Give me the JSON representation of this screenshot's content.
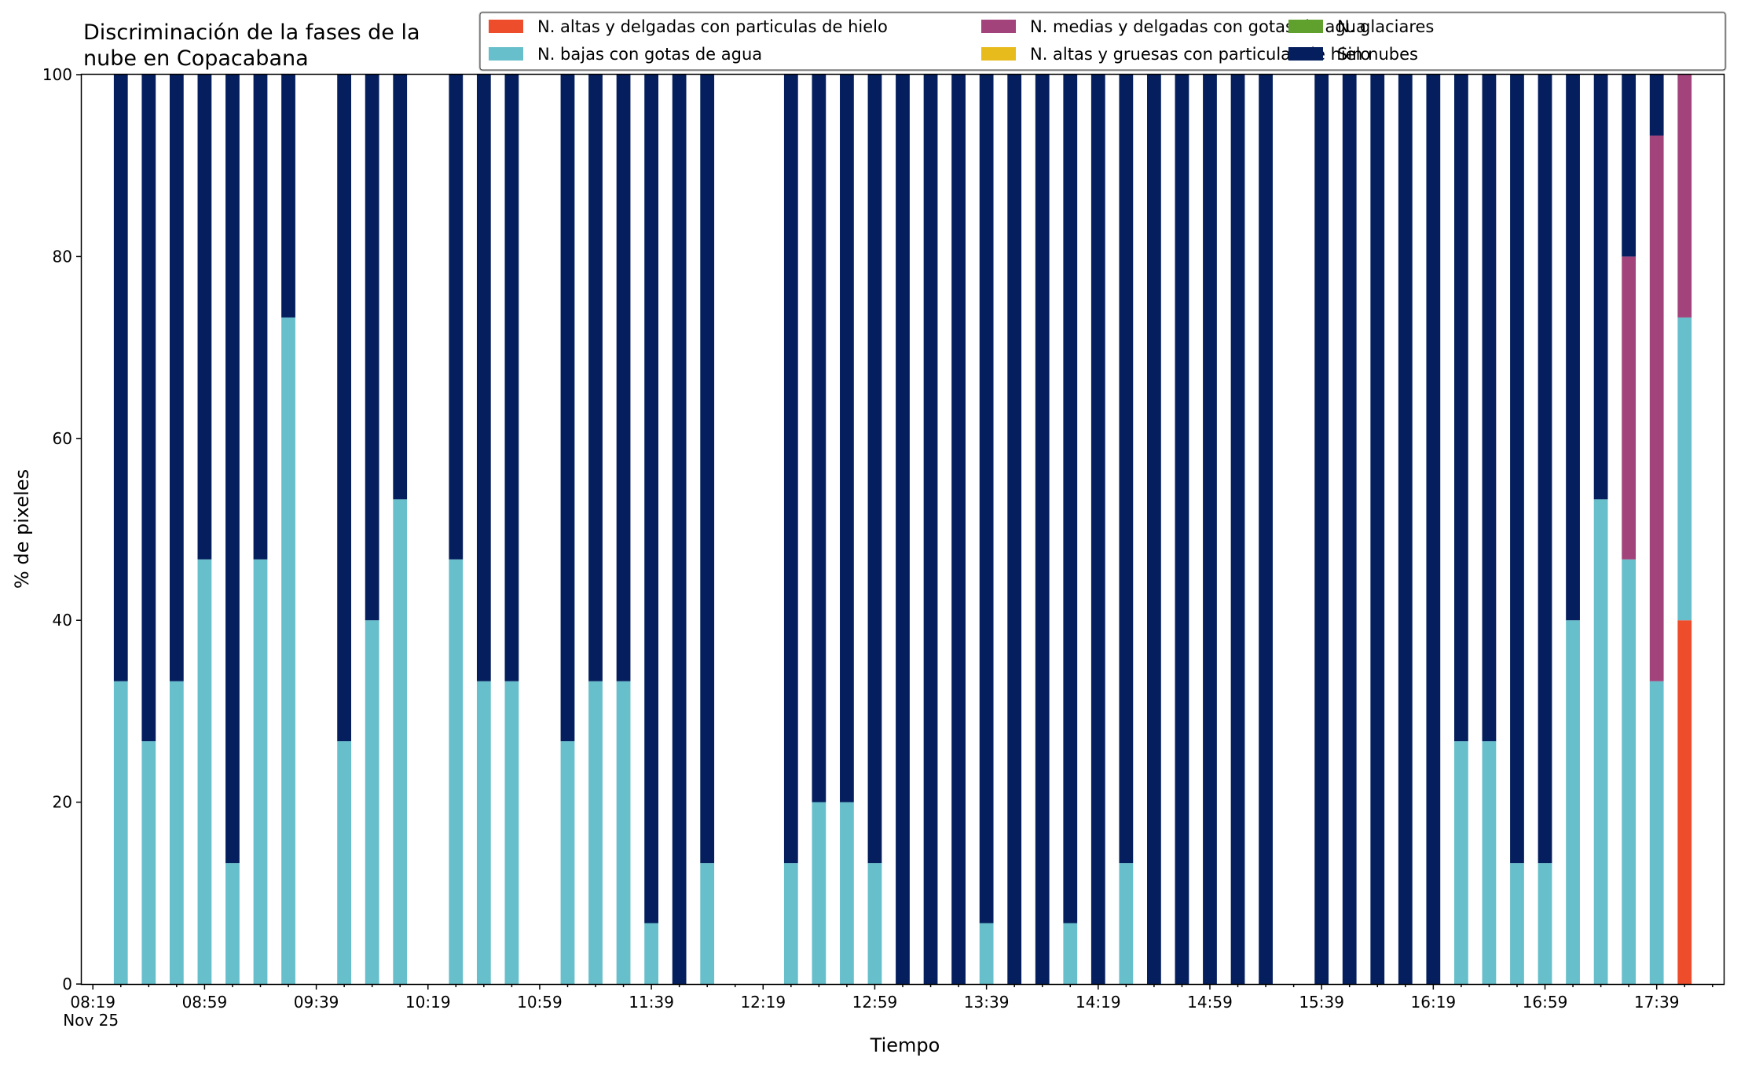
{
  "chart_data": {
    "type": "bar",
    "stacked": true,
    "title": "Discriminación de la fases de la nube en Copacabana",
    "title_lines": [
      "Discriminación de la fases de la",
      "nube en Copacabana"
    ],
    "xlabel": "Tiempo",
    "ylabel": "% de pixeles",
    "ylim": [
      0,
      100
    ],
    "yticks": [
      0,
      20,
      40,
      60,
      80,
      100
    ],
    "x_start": "08:19",
    "x_end": "17:59",
    "x_step_minutes": 10,
    "xtick_labels": [
      "08:19",
      "08:59",
      "09:39",
      "10:19",
      "10:59",
      "11:39",
      "12:19",
      "12:59",
      "13:39",
      "14:19",
      "14:59",
      "15:39",
      "16:19",
      "16:59",
      "17:39"
    ],
    "xtick_sublabel": "Nov 25",
    "legend_position": "top-right",
    "grid": false,
    "times": [
      "08:29",
      "08:39",
      "08:49",
      "08:59",
      "09:09",
      "09:19",
      "09:29",
      "09:49",
      "09:59",
      "10:09",
      "10:29",
      "10:39",
      "10:49",
      "11:09",
      "11:19",
      "11:29",
      "11:39",
      "11:49",
      "11:59",
      "12:29",
      "12:39",
      "12:49",
      "12:59",
      "13:09",
      "13:19",
      "13:29",
      "13:39",
      "13:49",
      "13:59",
      "14:09",
      "14:19",
      "14:29",
      "14:39",
      "14:49",
      "14:59",
      "15:09",
      "15:19",
      "15:39",
      "15:49",
      "15:59",
      "16:09",
      "16:19",
      "16:29",
      "16:39",
      "16:49",
      "16:59",
      "17:09",
      "17:19",
      "17:29",
      "17:39",
      "17:49"
    ],
    "series": [
      {
        "name": "N. altas y delgadas con particulas de hielo",
        "color": "#ee4d2b",
        "values": [
          0,
          0,
          0,
          0,
          0,
          0,
          0,
          0,
          0,
          0,
          0,
          0,
          0,
          0,
          0,
          0,
          0,
          0,
          0,
          0,
          0,
          0,
          0,
          0,
          0,
          0,
          0,
          0,
          0,
          0,
          0,
          0,
          0,
          0,
          0,
          0,
          0,
          0,
          0,
          0,
          0,
          0,
          0,
          0,
          0,
          0,
          0,
          0,
          0,
          0,
          40
        ]
      },
      {
        "name": "N. altas y gruesas con particulas de hielo",
        "color": "#e8bb1c",
        "values": [
          0,
          0,
          0,
          0,
          0,
          0,
          0,
          0,
          0,
          0,
          0,
          0,
          0,
          0,
          0,
          0,
          0,
          0,
          0,
          0,
          0,
          0,
          0,
          0,
          0,
          0,
          0,
          0,
          0,
          0,
          0,
          0,
          0,
          0,
          0,
          0,
          0,
          0,
          0,
          0,
          0,
          0,
          0,
          0,
          0,
          0,
          0,
          0,
          0,
          0,
          0
        ]
      },
      {
        "name": "N. bajas con gotas de agua",
        "color": "#67bfcb",
        "values": [
          33.3,
          26.7,
          33.3,
          46.7,
          13.3,
          46.7,
          73.3,
          26.7,
          40,
          53.3,
          46.7,
          33.3,
          33.3,
          26.7,
          33.3,
          33.3,
          6.7,
          0,
          13.3,
          13.3,
          20,
          20,
          13.3,
          0,
          0,
          0,
          6.7,
          0,
          0,
          6.7,
          0,
          13.3,
          0,
          0,
          0,
          0,
          0,
          0,
          0,
          0,
          0,
          0,
          26.7,
          26.7,
          13.3,
          13.3,
          40,
          53.3,
          46.7,
          33.3,
          33.3
        ]
      },
      {
        "name": "N. glaciares",
        "color": "#60a12e",
        "values": [
          0,
          0,
          0,
          0,
          0,
          0,
          0,
          0,
          0,
          0,
          0,
          0,
          0,
          0,
          0,
          0,
          0,
          0,
          0,
          0,
          0,
          0,
          0,
          0,
          0,
          0,
          0,
          0,
          0,
          0,
          0,
          0,
          0,
          0,
          0,
          0,
          0,
          0,
          0,
          0,
          0,
          0,
          0,
          0,
          0,
          0,
          0,
          0,
          0,
          0,
          0
        ]
      },
      {
        "name": "N. medias y delgadas con gotas de agua",
        "color": "#a2447b",
        "values": [
          0,
          0,
          0,
          0,
          0,
          0,
          0,
          0,
          0,
          0,
          0,
          0,
          0,
          0,
          0,
          0,
          0,
          0,
          0,
          0,
          0,
          0,
          0,
          0,
          0,
          0,
          0,
          0,
          0,
          0,
          0,
          0,
          0,
          0,
          0,
          0,
          0,
          0,
          0,
          0,
          0,
          0,
          0,
          0,
          0,
          0,
          0,
          0,
          33.3,
          60,
          26.7
        ]
      },
      {
        "name": "Sin nubes",
        "color": "#041e5e",
        "values": [
          66.7,
          73.3,
          66.7,
          53.3,
          86.7,
          53.3,
          26.7,
          73.3,
          60,
          46.7,
          53.3,
          66.7,
          66.7,
          73.3,
          66.7,
          66.7,
          93.3,
          100,
          86.7,
          86.7,
          80,
          80,
          86.7,
          100,
          100,
          100,
          93.3,
          100,
          100,
          93.3,
          100,
          86.7,
          100,
          100,
          100,
          100,
          100,
          100,
          100,
          100,
          100,
          100,
          73.3,
          73.3,
          86.7,
          86.7,
          60,
          46.7,
          20,
          6.7,
          0
        ]
      }
    ],
    "legend_order": [
      0,
      2,
      4,
      1,
      3,
      5
    ]
  }
}
